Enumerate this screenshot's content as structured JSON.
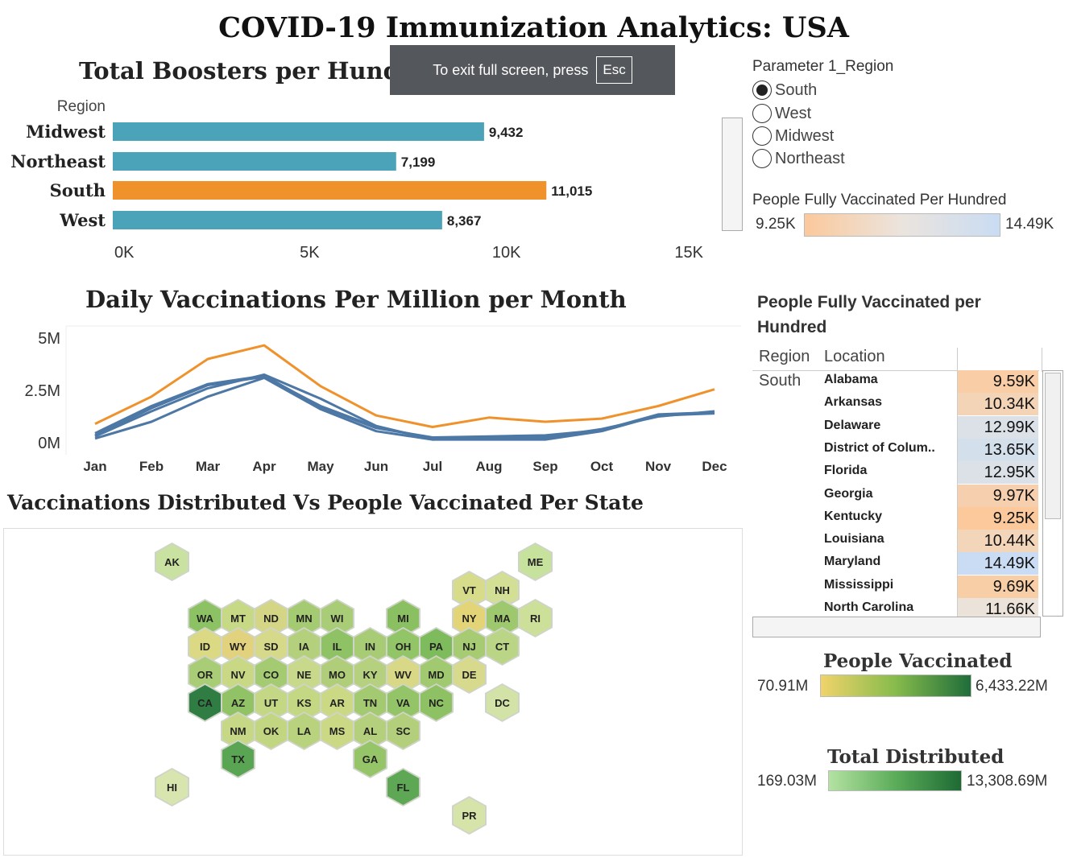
{
  "title": "COVID-19 Immunization Analytics: USA",
  "overlay": {
    "text": "To exit full screen, press",
    "key": "Esc"
  },
  "bar_section": {
    "title": "Total Boosters per Hundred"
  },
  "line_section": {
    "title": "Daily Vaccinations Per Million per Month"
  },
  "map_section": {
    "title": "Vaccinations Distributed Vs People Vaccinated Per State"
  },
  "parameter": {
    "title": "Parameter 1_Region",
    "selected": "South",
    "options": [
      "South",
      "West",
      "Midwest",
      "Northeast"
    ]
  },
  "legend_fully_vaccinated": {
    "title": "People Fully Vaccinated Per Hundred",
    "min": "9.25K",
    "max": "14.49K"
  },
  "legend_people_vaccinated": {
    "title": "People Vaccinated",
    "min": "70.91M",
    "max": "6,433.22M"
  },
  "legend_total_distributed": {
    "title": "Total Distributed",
    "min": "169.03M",
    "max": "13,308.69M"
  },
  "colors": {
    "bar_default": "#4aa3b8",
    "bar_highlight": "#f0922b",
    "line_highlight": "#f0922b",
    "line_default": "#4d78a6"
  },
  "chart_data": [
    {
      "type": "bar",
      "title": "Total Boosters per Hundred",
      "dimension_label": "Region",
      "categories": [
        "Midwest",
        "Northeast",
        "South",
        "West"
      ],
      "values": [
        9432,
        7199,
        11015,
        8367
      ],
      "value_labels": [
        "9,432",
        "7,199",
        "11,015",
        "8,367"
      ],
      "highlight": "South",
      "xlim": [
        0,
        15000
      ],
      "xticks": [
        0,
        5000,
        10000,
        15000
      ],
      "xtick_labels": [
        "0K",
        "5K",
        "10K",
        "15K"
      ]
    },
    {
      "type": "line",
      "title": "Daily Vaccinations Per Million per Month",
      "categories": [
        "Jan",
        "Feb",
        "Mar",
        "Apr",
        "May",
        "Jun",
        "Jul",
        "Aug",
        "Sep",
        "Oct",
        "Nov",
        "Dec"
      ],
      "ylim": [
        0,
        5000000
      ],
      "yticks": [
        0,
        2500000,
        5000000
      ],
      "ytick_labels": [
        "0M",
        "2.5M",
        "5M"
      ],
      "series": [
        {
          "highlight": true,
          "values": [
            900000,
            2200000,
            4000000,
            4650000,
            2700000,
            1300000,
            750000,
            1200000,
            1000000,
            1150000,
            1750000,
            2550000
          ]
        },
        {
          "highlight": false,
          "values": [
            450000,
            1750000,
            2800000,
            3200000,
            1700000,
            700000,
            250000,
            300000,
            350000,
            600000,
            1350000,
            1450000
          ]
        },
        {
          "highlight": false,
          "values": [
            300000,
            1500000,
            2600000,
            3250000,
            2100000,
            800000,
            150000,
            250000,
            250000,
            650000,
            1250000,
            1500000
          ]
        },
        {
          "highlight": false,
          "values": [
            200000,
            1000000,
            2200000,
            3100000,
            1600000,
            550000,
            150000,
            150000,
            150000,
            550000,
            1300000,
            1400000
          ]
        },
        {
          "highlight": false,
          "values": [
            350000,
            1650000,
            2750000,
            3150000,
            1750000,
            750000,
            200000,
            200000,
            300000,
            600000,
            1300000,
            1450000
          ]
        }
      ]
    },
    {
      "type": "table",
      "title": "People Fully Vaccinated per Hundred",
      "columns": [
        "Region",
        "Location"
      ],
      "region": "South",
      "rows": [
        {
          "location": "Alabama",
          "label": "9.59K",
          "value": 9.59
        },
        {
          "location": "Arkansas",
          "label": "10.34K",
          "value": 10.34
        },
        {
          "location": "Delaware",
          "label": "12.99K",
          "value": 12.99
        },
        {
          "location": "District of Colum..",
          "label": "13.65K",
          "value": 13.65
        },
        {
          "location": "Florida",
          "label": "12.95K",
          "value": 12.95
        },
        {
          "location": "Georgia",
          "label": "9.97K",
          "value": 9.97
        },
        {
          "location": "Kentucky",
          "label": "9.25K",
          "value": 9.25
        },
        {
          "location": "Louisiana",
          "label": "10.44K",
          "value": 10.44
        },
        {
          "location": "Maryland",
          "label": "14.49K",
          "value": 14.49
        },
        {
          "location": "Mississippi",
          "label": "9.69K",
          "value": 9.69
        },
        {
          "location": "North Carolina",
          "label": "11.66K",
          "value": 11.66
        }
      ]
    },
    {
      "type": "heatmap",
      "title": "Vaccinations Distributed Vs People Vaccinated Per State",
      "states": [
        {
          "code": "AK",
          "row": 0,
          "col": 0,
          "fill": "#c9e2a2"
        },
        {
          "code": "ME",
          "row": 0,
          "col": 11,
          "fill": "#c6e29c"
        },
        {
          "code": "VT",
          "row": 1,
          "col": 9,
          "fill": "#d7dc8a"
        },
        {
          "code": "NH",
          "row": 1,
          "col": 10,
          "fill": "#d3df94"
        },
        {
          "code": "WA",
          "row": 2,
          "col": 1,
          "fill": "#8cc264"
        },
        {
          "code": "MT",
          "row": 2,
          "col": 2,
          "fill": "#c7d985"
        },
        {
          "code": "ND",
          "row": 2,
          "col": 3,
          "fill": "#d5d685"
        },
        {
          "code": "MN",
          "row": 2,
          "col": 4,
          "fill": "#a5cb72"
        },
        {
          "code": "WI",
          "row": 2,
          "col": 5,
          "fill": "#a9cc77"
        },
        {
          "code": "MI",
          "row": 2,
          "col": 7,
          "fill": "#8ac061"
        },
        {
          "code": "NY",
          "row": 2,
          "col": 9,
          "fill": "#e3d577"
        },
        {
          "code": "MA",
          "row": 2,
          "col": 10,
          "fill": "#9ec86d"
        },
        {
          "code": "RI",
          "row": 2,
          "col": 11,
          "fill": "#cde099"
        },
        {
          "code": "ID",
          "row": 3,
          "col": 1,
          "fill": "#dbd984"
        },
        {
          "code": "WY",
          "row": 3,
          "col": 2,
          "fill": "#e2d27d"
        },
        {
          "code": "SD",
          "row": 3,
          "col": 3,
          "fill": "#d6d88a"
        },
        {
          "code": "IA",
          "row": 3,
          "col": 4,
          "fill": "#b4d07d"
        },
        {
          "code": "IL",
          "row": 3,
          "col": 5,
          "fill": "#8ec264"
        },
        {
          "code": "IN",
          "row": 3,
          "col": 6,
          "fill": "#a8cb75"
        },
        {
          "code": "OH",
          "row": 3,
          "col": 7,
          "fill": "#92c468"
        },
        {
          "code": "PA",
          "row": 3,
          "col": 8,
          "fill": "#7ebb5c"
        },
        {
          "code": "NJ",
          "row": 3,
          "col": 9,
          "fill": "#a6cb73"
        },
        {
          "code": "CT",
          "row": 3,
          "col": 10,
          "fill": "#b9d585"
        },
        {
          "code": "OR",
          "row": 4,
          "col": 1,
          "fill": "#a9cc76"
        },
        {
          "code": "NV",
          "row": 4,
          "col": 2,
          "fill": "#c8d885"
        },
        {
          "code": "CO",
          "row": 4,
          "col": 3,
          "fill": "#a4cb72"
        },
        {
          "code": "NE",
          "row": 4,
          "col": 4,
          "fill": "#c8d98b"
        },
        {
          "code": "MO",
          "row": 4,
          "col": 5,
          "fill": "#b0ce7a"
        },
        {
          "code": "KY",
          "row": 4,
          "col": 6,
          "fill": "#b5d07e"
        },
        {
          "code": "WV",
          "row": 4,
          "col": 7,
          "fill": "#d8d886"
        },
        {
          "code": "MD",
          "row": 4,
          "col": 8,
          "fill": "#a1c96f"
        },
        {
          "code": "DE",
          "row": 4,
          "col": 9,
          "fill": "#d7da8d"
        },
        {
          "code": "CA",
          "row": 5,
          "col": 1,
          "fill": "#2f7d43"
        },
        {
          "code": "AZ",
          "row": 5,
          "col": 2,
          "fill": "#91c366"
        },
        {
          "code": "UT",
          "row": 5,
          "col": 3,
          "fill": "#c4d785"
        },
        {
          "code": "KS",
          "row": 5,
          "col": 4,
          "fill": "#c4d783"
        },
        {
          "code": "AR",
          "row": 5,
          "col": 5,
          "fill": "#cbd984"
        },
        {
          "code": "TN",
          "row": 5,
          "col": 6,
          "fill": "#a4ca71"
        },
        {
          "code": "VA",
          "row": 5,
          "col": 7,
          "fill": "#94c468"
        },
        {
          "code": "NC",
          "row": 5,
          "col": 8,
          "fill": "#8dc163"
        },
        {
          "code": "DC",
          "row": 5,
          "col": 10,
          "fill": "#d3e3a8"
        },
        {
          "code": "NM",
          "row": 6,
          "col": 2,
          "fill": "#c6d886"
        },
        {
          "code": "OK",
          "row": 6,
          "col": 3,
          "fill": "#c2d681"
        },
        {
          "code": "LA",
          "row": 6,
          "col": 4,
          "fill": "#b8d27d"
        },
        {
          "code": "MS",
          "row": 6,
          "col": 5,
          "fill": "#cbd985"
        },
        {
          "code": "AL",
          "row": 6,
          "col": 6,
          "fill": "#b4d07c"
        },
        {
          "code": "SC",
          "row": 6,
          "col": 7,
          "fill": "#b3cf7b"
        },
        {
          "code": "TX",
          "row": 7,
          "col": 2,
          "fill": "#5aa553"
        },
        {
          "code": "GA",
          "row": 7,
          "col": 6,
          "fill": "#96c569"
        },
        {
          "code": "HI",
          "row": 8,
          "col": 0,
          "fill": "#d9e5ae"
        },
        {
          "code": "FL",
          "row": 8,
          "col": 7,
          "fill": "#5ea755"
        },
        {
          "code": "PR",
          "row": 9,
          "col": 9,
          "fill": "#d6e3a9"
        }
      ]
    }
  ]
}
